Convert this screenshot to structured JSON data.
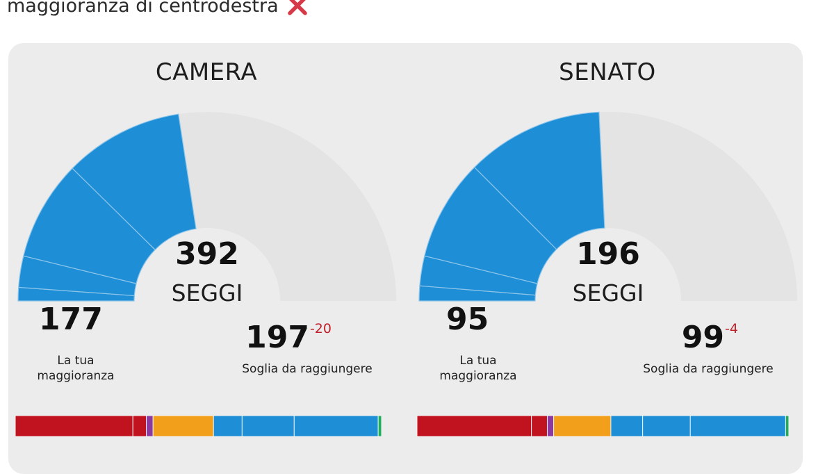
{
  "caption": {
    "text": "maggioranza di centrodestra",
    "icon": "cross-mark-icon",
    "icon_color": "#d63a48"
  },
  "colors": {
    "seat_blue": "#1e8fd6",
    "red": "#c1121f",
    "purple": "#8b3aa0",
    "orange": "#f2a01b",
    "green": "#1fae5a",
    "arc_bg": "#e4e4e4",
    "delta_red": "#c0202a"
  },
  "chambers": [
    {
      "title": "CAMERA",
      "total_seats": "392",
      "seats_label": "SEGGI",
      "majority_value": "177",
      "majority_label_1": "La tua",
      "majority_label_2": "maggioranza",
      "threshold_value": "197",
      "threshold_delta": "-20",
      "threshold_label": "Soglia da raggiungere",
      "arc_segment_seats": [
        9,
        21,
        67,
        80
      ],
      "bar_segments": [
        {
          "color": "red",
          "seats": 70
        },
        {
          "color": "red",
          "seats": 8
        },
        {
          "color": "purple",
          "seats": 4
        },
        {
          "color": "orange",
          "seats": 36
        },
        {
          "color": "seat_blue",
          "seats": 17
        },
        {
          "color": "seat_blue",
          "seats": 31
        },
        {
          "color": "seat_blue",
          "seats": 50
        },
        {
          "color": "green",
          "seats": 2
        }
      ]
    },
    {
      "title": "SENATO",
      "total_seats": "196",
      "seats_label": "SEGGI",
      "majority_value": "95",
      "majority_label_1": "La tua",
      "majority_label_2": "maggioranza",
      "threshold_value": "99",
      "threshold_delta": "-4",
      "threshold_label": "Soglia da raggiungere",
      "arc_segment_seats": [
        5,
        10,
        34,
        46
      ],
      "bar_segments": [
        {
          "color": "red",
          "seats": 36
        },
        {
          "color": "red",
          "seats": 5
        },
        {
          "color": "purple",
          "seats": 2
        },
        {
          "color": "orange",
          "seats": 18
        },
        {
          "color": "seat_blue",
          "seats": 10
        },
        {
          "color": "seat_blue",
          "seats": 15
        },
        {
          "color": "seat_blue",
          "seats": 30
        },
        {
          "color": "green",
          "seats": 1
        }
      ]
    }
  ]
}
